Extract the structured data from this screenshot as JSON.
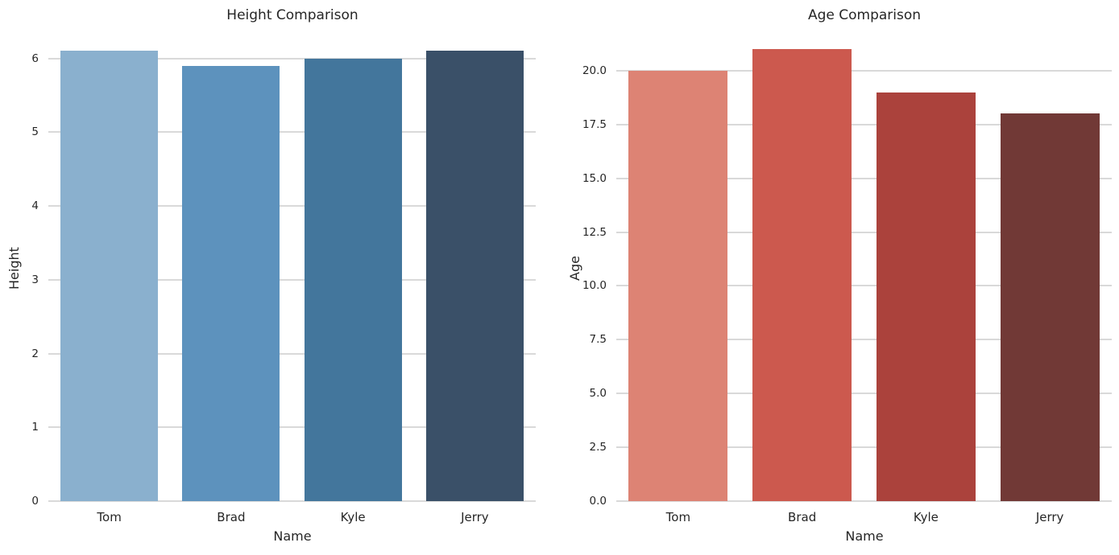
{
  "figure": {
    "background": "#ffffff",
    "text_color": "#262626",
    "grid_color": "#d9d9d9"
  },
  "chart_data": [
    {
      "type": "bar",
      "title": "Height Comparison",
      "xlabel": "Name",
      "ylabel": "Height",
      "categories": [
        "Tom",
        "Brad",
        "Kyle",
        "Jerry"
      ],
      "values": [
        6.1,
        5.9,
        6.0,
        6.1
      ],
      "bar_colors": [
        "#8ab0ce",
        "#5d92bd",
        "#43769c",
        "#3a5068"
      ],
      "yticks": [
        0,
        1,
        2,
        3,
        4,
        5,
        6
      ],
      "ytick_labels": [
        "0",
        "1",
        "2",
        "3",
        "4",
        "5",
        "6"
      ],
      "ylim": [
        0,
        6.3
      ],
      "grid": true,
      "legend": "none",
      "bar_width_fraction": 0.8
    },
    {
      "type": "bar",
      "title": "Age Comparison",
      "xlabel": "Name",
      "ylabel": "Age",
      "categories": [
        "Tom",
        "Brad",
        "Kyle",
        "Jerry"
      ],
      "values": [
        20,
        21,
        19,
        18
      ],
      "bar_colors": [
        "#dd8374",
        "#cc594e",
        "#ab423c",
        "#713936"
      ],
      "yticks": [
        0,
        2.5,
        5,
        7.5,
        10,
        12.5,
        15,
        17.5,
        20
      ],
      "ytick_labels": [
        "0.0",
        "2.5",
        "5.0",
        "7.5",
        "10.0",
        "12.5",
        "15.0",
        "17.5",
        "20.0"
      ],
      "ylim": [
        0,
        21.6
      ],
      "grid": true,
      "legend": "none",
      "bar_width_fraction": 0.8
    }
  ]
}
